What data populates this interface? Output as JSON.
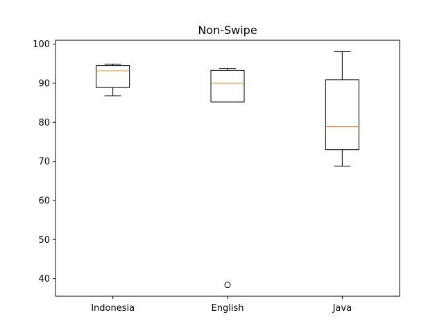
{
  "chart_data": {
    "type": "box",
    "title": "Non-Swipe",
    "xlabel": "",
    "ylabel": "",
    "ylim": [
      35.5,
      101.0
    ],
    "yticks": [
      40,
      50,
      60,
      70,
      80,
      90,
      100
    ],
    "categories": [
      "Indonesia",
      "English",
      "Java"
    ],
    "boxes": [
      {
        "name": "Indonesia",
        "whisker_low": 86.8,
        "q1": 88.9,
        "median": 93.2,
        "q3": 94.5,
        "whisker_high": 94.9,
        "outliers": []
      },
      {
        "name": "English",
        "whisker_low": 85.2,
        "q1": 85.2,
        "median": 90.0,
        "q3": 93.3,
        "whisker_high": 93.8,
        "outliers": [
          38.4
        ]
      },
      {
        "name": "Java",
        "whisker_low": 68.8,
        "q1": 73.0,
        "median": 78.9,
        "q3": 90.9,
        "whisker_high": 98.1,
        "outliers": []
      }
    ],
    "grid": false,
    "colors": {
      "box": "#000000",
      "median": "#ff7f0e",
      "frame": "#000000",
      "background": "#ffffff"
    }
  }
}
